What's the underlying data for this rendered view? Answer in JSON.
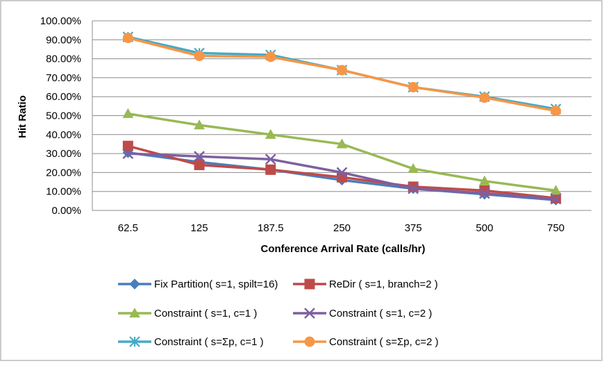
{
  "chart_data": {
    "type": "line",
    "title": "",
    "xlabel": "Conference Arrival Rate (calls/hr)",
    "ylabel": "Hit Ratio",
    "categories": [
      "62.5",
      "125",
      "187.5",
      "250",
      "375",
      "500",
      "750"
    ],
    "ylim": [
      0,
      100
    ],
    "yticks": [
      "0.00%",
      "10.00%",
      "20.00%",
      "30.00%",
      "40.00%",
      "50.00%",
      "60.00%",
      "70.00%",
      "80.00%",
      "90.00%",
      "100.00%"
    ],
    "grid": true,
    "legend_position": "bottom",
    "series": [
      {
        "name": "Fix Partition( s=1, spilt=16)",
        "color": "#4a7ebb",
        "marker": "diamond",
        "values": [
          30.5,
          25.5,
          21.5,
          16.0,
          11.5,
          8.5,
          5.5
        ]
      },
      {
        "name": "ReDir (  s=1, branch=2 )",
        "color": "#be4b48",
        "marker": "square",
        "values": [
          34.0,
          24.0,
          21.5,
          17.5,
          12.5,
          10.5,
          6.5
        ]
      },
      {
        "name": "Constraint ( s=1, c=1 )",
        "color": "#98b954",
        "marker": "triangle",
        "values": [
          51.0,
          45.0,
          40.0,
          35.0,
          22.0,
          15.5,
          10.5
        ]
      },
      {
        "name": "Constraint ( s=1, c=2 )",
        "color": "#7d60a0",
        "marker": "x",
        "values": [
          30.0,
          28.5,
          27.0,
          20.0,
          11.5,
          9.0,
          6.0
        ]
      },
      {
        "name": "Constraint (  s=Σp, c=1 )",
        "color": "#46aac5",
        "marker": "star",
        "values": [
          91.5,
          83.0,
          82.0,
          74.0,
          65.0,
          60.0,
          53.5
        ]
      },
      {
        "name": "Constraint (  s=Σp, c=2 )",
        "color": "#f79646",
        "marker": "circle",
        "values": [
          91.0,
          81.5,
          81.0,
          74.0,
          65.0,
          59.5,
          52.5
        ]
      }
    ]
  }
}
